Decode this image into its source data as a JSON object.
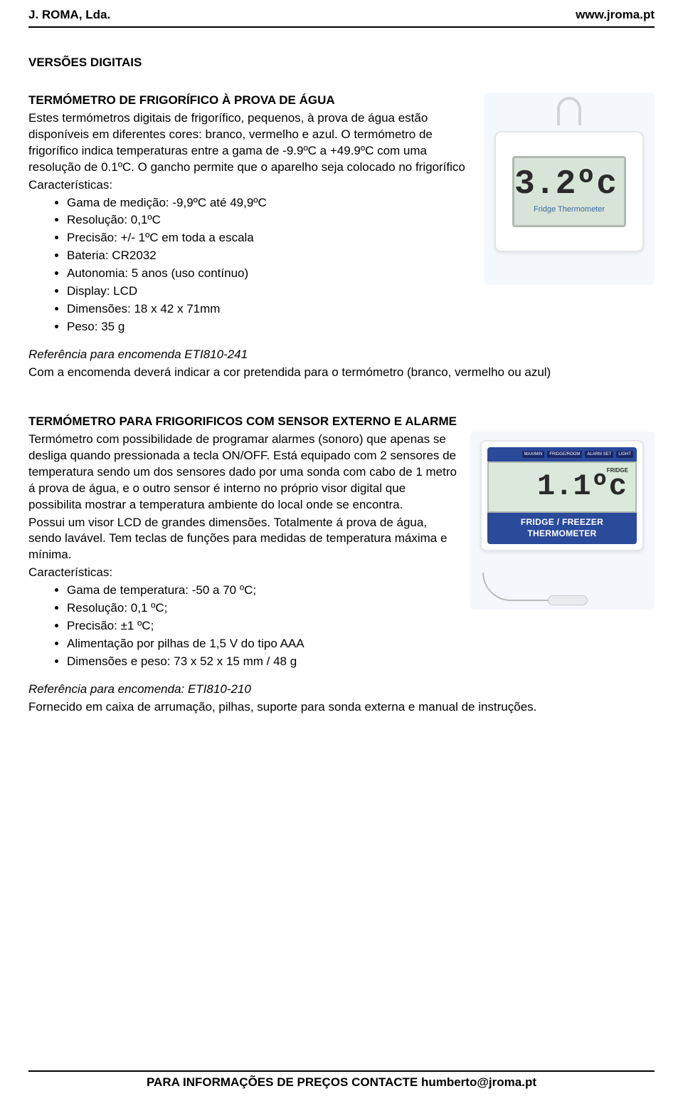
{
  "header": {
    "company": "J. ROMA, Lda.",
    "site": "www.jroma.pt"
  },
  "section_title": "VERSÕES DIGITAIS",
  "product1": {
    "heading": "TERMÓMETRO DE FRIGORÍFICO À PROVA DE ÁGUA",
    "desc": "Estes termómetros digitais de frigorífico, pequenos, à prova de água estão disponíveis em diferentes cores: branco, vermelho e azul. O termómetro de frigorífico indica temperaturas entre a gama de -9.9ºC a +49.9ºC com uma resolução de 0.1ºC. O gancho permite que o aparelho seja colocado no frigorífico",
    "char_label": "Características:",
    "specs": [
      "Gama de medição: -9,9ºC até 49,9ºC",
      "Resolução: 0,1ºC",
      "Precisão: +/- 1ºC em toda a escala",
      "Bateria: CR2032",
      "Autonomia: 5 anos (uso contínuo)",
      "Display: LCD",
      "Dimensões: 18 x 42 x 71mm",
      "Peso: 35 g"
    ],
    "ref": "Referência para encomenda ETI810-241",
    "note": "Com a encomenda deverá indicar a cor pretendida para o termómetro (branco, vermelho ou azul)",
    "image": {
      "lcd_value": "3.2ºc",
      "lcd_label": "Fridge Thermometer"
    }
  },
  "product2": {
    "heading": "TERMÓMETRO PARA FRIGORIFICOS COM SENSOR EXTERNO E ALARME",
    "desc": "Termómetro com possibilidade de programar alarmes (sonoro) que apenas se desliga quando pressionada a tecla ON/OFF. Está equipado com 2 sensores de temperatura sendo um dos sensores dado por uma sonda com cabo de 1 metro á prova de água, e o outro sensor é interno no próprio visor digital que possibilita mostrar a temperatura ambiente do local onde se encontra.",
    "desc2": "Possui um visor LCD de grandes dimensões. Totalmente á prova de água, sendo lavável. Tem teclas de funções para medidas de temperatura máxima e mínima.",
    "char_label": "Características:",
    "specs": [
      "Gama de temperatura: -50 a 70 ºC;",
      "Resolução: 0,1 ºC;",
      "Precisão: ±1 ºC;",
      "Alimentação por pilhas de 1,5 V do tipo AAA",
      "Dimensões e peso: 73 x 52 x 15 mm / 48 g"
    ],
    "ref": "Referência para encomenda: ETI810-210",
    "note": "Fornecido em caixa de arrumação, pilhas, suporte para sonda externa e manual de instruções.",
    "image": {
      "lcd_value": "1.1ºc",
      "lcd_tag": "FRIDGE",
      "device_label": "FRIDGE / FREEZER THERMOMETER",
      "buttons": [
        "MAX/MIN",
        "FRIDGE/ROOM",
        "ALARM SET",
        "LIGHT"
      ]
    }
  },
  "footer": "PARA INFORMAÇÕES DE PREÇOS CONTACTE humberto@jroma.pt"
}
